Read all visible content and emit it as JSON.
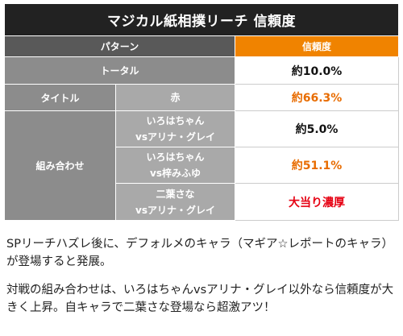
{
  "table": {
    "title": "マジカル紙相撲リーチ 信頼度",
    "header": {
      "pattern_label": "パターン",
      "reliability_label": "信頼度"
    },
    "total": {
      "label": "トータル",
      "value": "約10.0%"
    },
    "title_row": {
      "group": "タイトル",
      "item": "赤",
      "value": "約66.3%"
    },
    "combo": {
      "group": "組み合わせ",
      "rows": [
        {
          "line1": "いろはちゃん",
          "line2": "vsアリナ・グレイ",
          "value": "約5.0%"
        },
        {
          "line1": "いろはちゃん",
          "line2": "vs梓みふゆ",
          "value": "約51.1%"
        },
        {
          "line1": "二葉さな",
          "line2": "vsアリナ・グレイ",
          "value": "大当り濃厚"
        }
      ]
    }
  },
  "description": {
    "paragraph1": "SPリーチハズレ後に、デフォルメのキャラ（マギア☆レポートのキャラ）が登場すると発展。",
    "paragraph2": "対戦の組み合わせは、いろはちゃんvsアリナ・グレイ以外なら信頼度が大きく上昇。自キャラで二葉さな登場なら超激アツ！"
  },
  "colors": {
    "title_bg": "#222222",
    "header_bg": "#595959",
    "orange_header": "#f08300",
    "orange_text": "#e86c00",
    "red_text": "#e60012"
  }
}
